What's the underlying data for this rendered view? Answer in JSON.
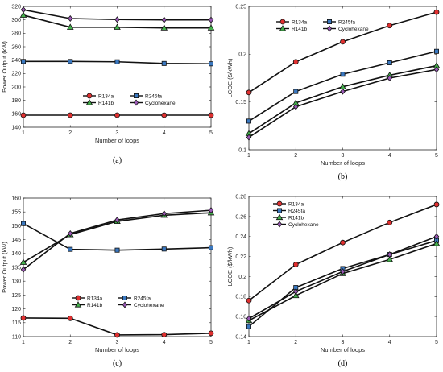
{
  "chart_data": [
    {
      "panel_label": "(a)",
      "type": "line",
      "xlabel": "Number of loops",
      "ylabel": "Power Output (kW)",
      "x": [
        1,
        2,
        3,
        4,
        5
      ],
      "xticks": [
        1,
        2,
        3,
        4,
        5
      ],
      "ylim": [
        140,
        320
      ],
      "yticks": [
        140,
        160,
        180,
        200,
        220,
        240,
        260,
        280,
        300,
        320
      ],
      "legend_position": "center-right",
      "legend_columns": 2,
      "series": [
        {
          "name": "R134a",
          "marker": "circle",
          "color": "#e03030",
          "values": [
            158,
            158,
            158,
            158,
            158
          ]
        },
        {
          "name": "R245fa",
          "marker": "square",
          "color": "#3a78c0",
          "values": [
            238,
            238,
            237.5,
            235,
            234.5
          ]
        },
        {
          "name": "R141b",
          "marker": "triangle",
          "color": "#44b04c",
          "values": [
            307,
            289,
            289,
            288,
            288
          ]
        },
        {
          "name": "Cyclohexane",
          "marker": "diamond",
          "color": "#9b59b6",
          "values": [
            315,
            302,
            300.5,
            300,
            300
          ]
        }
      ]
    },
    {
      "panel_label": "(b)",
      "type": "line",
      "xlabel": "Number of loops",
      "ylabel": "LCOE ($/kWh)",
      "x": [
        1,
        2,
        3,
        4,
        5
      ],
      "xticks": [
        1,
        2,
        3,
        4,
        5
      ],
      "ylim": [
        0.1,
        0.25
      ],
      "yticks": [
        0.1,
        0.15,
        0.2,
        0.25
      ],
      "legend_position": "top-left",
      "legend_columns": 2,
      "series": [
        {
          "name": "R134a",
          "marker": "circle",
          "color": "#e03030",
          "values": [
            0.16,
            0.192,
            0.213,
            0.23,
            0.244
          ]
        },
        {
          "name": "R245fa",
          "marker": "square",
          "color": "#3a78c0",
          "values": [
            0.13,
            0.161,
            0.179,
            0.191,
            0.203
          ]
        },
        {
          "name": "R141b",
          "marker": "triangle",
          "color": "#44b04c",
          "values": [
            0.117,
            0.149,
            0.166,
            0.178,
            0.188
          ]
        },
        {
          "name": "Cyclohexane",
          "marker": "diamond",
          "color": "#9b59b6",
          "values": [
            0.113,
            0.145,
            0.161,
            0.175,
            0.184
          ]
        }
      ]
    },
    {
      "panel_label": "(c)",
      "type": "line",
      "xlabel": "Number of loops",
      "ylabel": "Power Output (kW)",
      "x": [
        1,
        2,
        3,
        4,
        5
      ],
      "xticks": [
        1,
        2,
        3,
        4,
        5
      ],
      "ylim": [
        110,
        160
      ],
      "yticks": [
        110,
        115,
        120,
        125,
        130,
        135,
        140,
        145,
        150,
        155,
        160
      ],
      "legend_position": "center-right",
      "legend_columns": 2,
      "series": [
        {
          "name": "R134a",
          "marker": "circle",
          "color": "#e03030",
          "values": [
            116.7,
            116.6,
            110.6,
            110.7,
            111.2
          ]
        },
        {
          "name": "R245fa",
          "marker": "square",
          "color": "#3a78c0",
          "values": [
            150.8,
            141.5,
            141.2,
            141.6,
            142.1
          ]
        },
        {
          "name": "R141b",
          "marker": "triangle",
          "color": "#44b04c",
          "values": [
            136.8,
            146.8,
            151.6,
            153.8,
            154.7
          ]
        },
        {
          "name": "Cyclohexane",
          "marker": "diamond",
          "color": "#9b59b6",
          "values": [
            134.2,
            147.2,
            152.1,
            154.4,
            155.6
          ]
        }
      ]
    },
    {
      "panel_label": "(d)",
      "type": "line",
      "xlabel": "Number of loops",
      "ylabel": "LCOE ($/kWh)",
      "x": [
        1,
        2,
        3,
        4,
        5
      ],
      "xticks": [
        1,
        2,
        3,
        4,
        5
      ],
      "ylim": [
        0.14,
        0.28
      ],
      "yticks": [
        0.14,
        0.16,
        0.18,
        0.2,
        0.22,
        0.24,
        0.26,
        0.28
      ],
      "legend_position": "top-left",
      "legend_columns": 1,
      "series": [
        {
          "name": "R134a",
          "marker": "circle",
          "color": "#e03030",
          "values": [
            0.176,
            0.212,
            0.234,
            0.254,
            0.272
          ]
        },
        {
          "name": "R245fa",
          "marker": "square",
          "color": "#3a78c0",
          "values": [
            0.15,
            0.189,
            0.208,
            0.222,
            0.236
          ]
        },
        {
          "name": "R141b",
          "marker": "triangle",
          "color": "#44b04c",
          "values": [
            0.156,
            0.181,
            0.203,
            0.217,
            0.233
          ]
        },
        {
          "name": "Cyclohexane",
          "marker": "diamond",
          "color": "#9b59b6",
          "values": [
            0.158,
            0.185,
            0.205,
            0.222,
            0.24
          ]
        }
      ]
    }
  ]
}
